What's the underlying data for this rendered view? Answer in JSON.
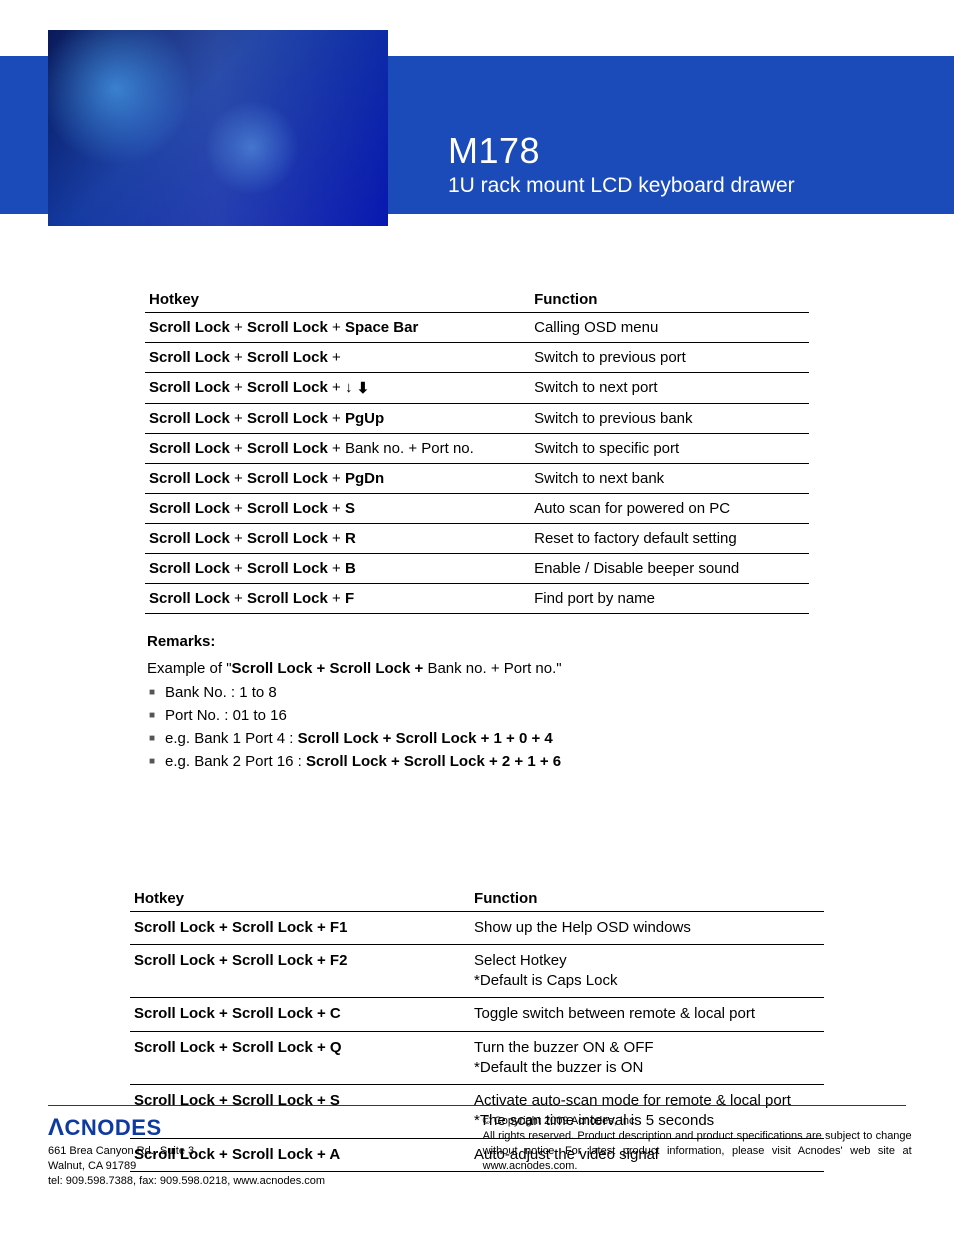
{
  "header": {
    "model": "M178",
    "subtitle": "1U rack mount LCD keyboard drawer",
    "band_color": "#1a4bb8"
  },
  "table1": {
    "columns": [
      "Hotkey",
      "Function"
    ],
    "rows": [
      {
        "keys": [
          "Scroll Lock",
          "+",
          "Scroll Lock",
          "+",
          "Space Bar"
        ],
        "bold": [
          0,
          2,
          4
        ],
        "fn": "Calling OSD menu"
      },
      {
        "keys": [
          "Scroll Lock",
          "+",
          "Scroll Lock",
          "+",
          ""
        ],
        "bold": [
          0,
          2
        ],
        "fn": "Switch to previous port",
        "arrow": "up"
      },
      {
        "keys": [
          "Scroll Lock",
          "+",
          "Scroll Lock",
          "+",
          "↓"
        ],
        "bold": [
          0,
          2
        ],
        "fn": "Switch to next port",
        "arrow": "down"
      },
      {
        "keys": [
          "Scroll Lock",
          "+",
          "Scroll Lock",
          "+",
          "PgUp"
        ],
        "bold": [
          0,
          2,
          4
        ],
        "fn": "Switch to previous bank"
      },
      {
        "keys": [
          "Scroll Lock",
          "+",
          "Scroll Lock",
          "+",
          "Bank no.",
          "+",
          "Port no."
        ],
        "bold": [
          0,
          2
        ],
        "fn": "Switch to specific port"
      },
      {
        "keys": [
          "Scroll Lock",
          "+",
          "Scroll Lock",
          "+",
          "PgDn"
        ],
        "bold": [
          0,
          2,
          4
        ],
        "fn": "Switch to next bank"
      },
      {
        "keys": [
          "Scroll Lock",
          "+",
          "Scroll Lock",
          "+",
          "S"
        ],
        "bold": [
          0,
          2,
          4
        ],
        "fn": "Auto scan for powered on PC"
      },
      {
        "keys": [
          "Scroll Lock",
          "+",
          "Scroll Lock",
          "+",
          "R"
        ],
        "bold": [
          0,
          2,
          4
        ],
        "fn": "Reset to factory default setting"
      },
      {
        "keys": [
          "Scroll Lock",
          "+",
          "Scroll Lock",
          "+",
          "B"
        ],
        "bold": [
          0,
          2,
          4
        ],
        "fn": "Enable / Disable beeper sound"
      },
      {
        "keys": [
          "Scroll Lock",
          "+",
          "Scroll Lock",
          "+",
          "F"
        ],
        "bold": [
          0,
          2,
          4
        ],
        "fn": "Find port by name"
      }
    ]
  },
  "remarks": {
    "title": "Remarks:",
    "intro_prefix": "Example of \"",
    "intro_bold": "Scroll Lock  +  Scroll Lock  +",
    "intro_suffix": "   Bank no.  +  Port no.\"",
    "items": [
      {
        "text": "Bank No. :  1 to 8"
      },
      {
        "text": "Port No. :  01 to 16"
      },
      {
        "prefix": "e.g. Bank 1 Port 4 : ",
        "bold": "Scroll Lock   +   Scroll Lock   +   1   +   0   +   4"
      },
      {
        "prefix": "e.g. Bank 2 Port 16 : ",
        "bold": "Scroll Lock   +   Scroll Lock   +   2   +   1   +   6"
      }
    ]
  },
  "table2": {
    "columns": [
      "Hotkey",
      "Function"
    ],
    "rows": [
      {
        "keys": "Scroll Lock  +  Scroll Lock  +   F1",
        "fn": "Show up the Help OSD windows"
      },
      {
        "keys": "Scroll Lock  +  Scroll Lock  +   F2",
        "fn": "Select Hotkey\n*Default is Caps Lock"
      },
      {
        "keys": "Scroll Lock  +  Scroll Lock  +   C",
        "fn": "Toggle switch between remote & local port"
      },
      {
        "keys": "Scroll Lock  +  Scroll Lock  +   Q",
        "fn": "Turn the buzzer ON & OFF\n*Default the buzzer is ON"
      },
      {
        "keys": "Scroll Lock  +  Scroll Lock  +   S",
        "fn": "Activate auto-scan mode for remote & local port\n*The scan time interval is 5 seconds"
      },
      {
        "keys": "Scroll Lock  +  Scroll Lock  +   A",
        "fn": "Auto-adjust the video signal"
      }
    ]
  },
  "footer": {
    "logo": "CNODES",
    "address": "661 Brea Canyon Rd., Suite 3\nWalnut, CA 91789\ntel: 909.598.7388, fax: 909.598.0218, www.acnodes.com",
    "copyright": "© Copyright 2009 Acnodes, Inc.",
    "legal": "All rights reserved. Product description and product specifications are subject to change without notice. For latest product information, please visit Acnodes' web site at www.acnodes.com."
  }
}
